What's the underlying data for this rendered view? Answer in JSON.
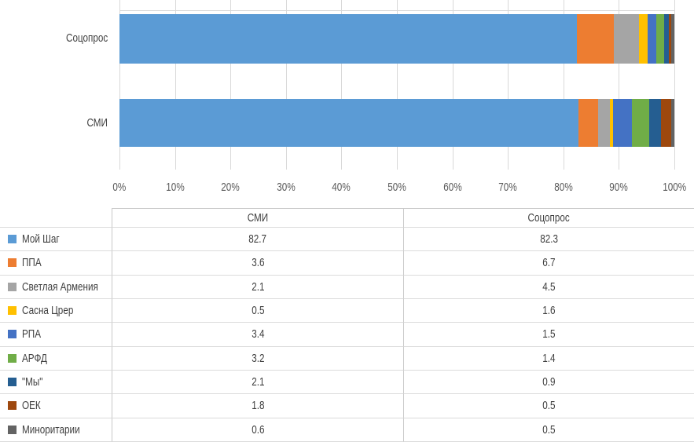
{
  "chart_data": {
    "type": "bar",
    "orientation": "horizontal",
    "stacked": true,
    "unit": "%",
    "grid": true,
    "xlim": [
      0,
      100
    ],
    "x_ticks": [
      "0%",
      "10%",
      "20%",
      "30%",
      "40%",
      "50%",
      "60%",
      "70%",
      "80%",
      "90%",
      "100%"
    ],
    "categories": [
      "Соцопрос",
      "СМИ"
    ],
    "series": [
      {
        "name": "Мой Шаг",
        "color": "#5B9BD5",
        "values": [
          82.3,
          82.7
        ]
      },
      {
        "name": "ППА",
        "color": "#ED7D31",
        "values": [
          6.7,
          3.6
        ]
      },
      {
        "name": "Светлая Армения",
        "color": "#A5A5A5",
        "values": [
          4.5,
          2.1
        ]
      },
      {
        "name": "Сасна Црер",
        "color": "#FFC000",
        "values": [
          1.6,
          0.5
        ]
      },
      {
        "name": "РПА",
        "color": "#4472C4",
        "values": [
          1.5,
          3.4
        ]
      },
      {
        "name": "АРФД",
        "color": "#70AD47",
        "values": [
          1.4,
          3.2
        ]
      },
      {
        "name": "\"Мы\"",
        "color": "#255E91",
        "values": [
          0.9,
          2.1
        ]
      },
      {
        "name": "ОЕК",
        "color": "#9E480E",
        "values": [
          0.5,
          1.8
        ]
      },
      {
        "name": "Миноритарии",
        "color": "#636363",
        "values": [
          0.5,
          0.6
        ]
      }
    ]
  },
  "table": {
    "column_headers": [
      "СМИ",
      "Соцопрос"
    ],
    "value_map": [
      1,
      0
    ]
  },
  "style": {
    "gridline_color": "#D9D9D9",
    "axis_text_color": "#595959",
    "table_text_color": "#3f3f3f"
  }
}
